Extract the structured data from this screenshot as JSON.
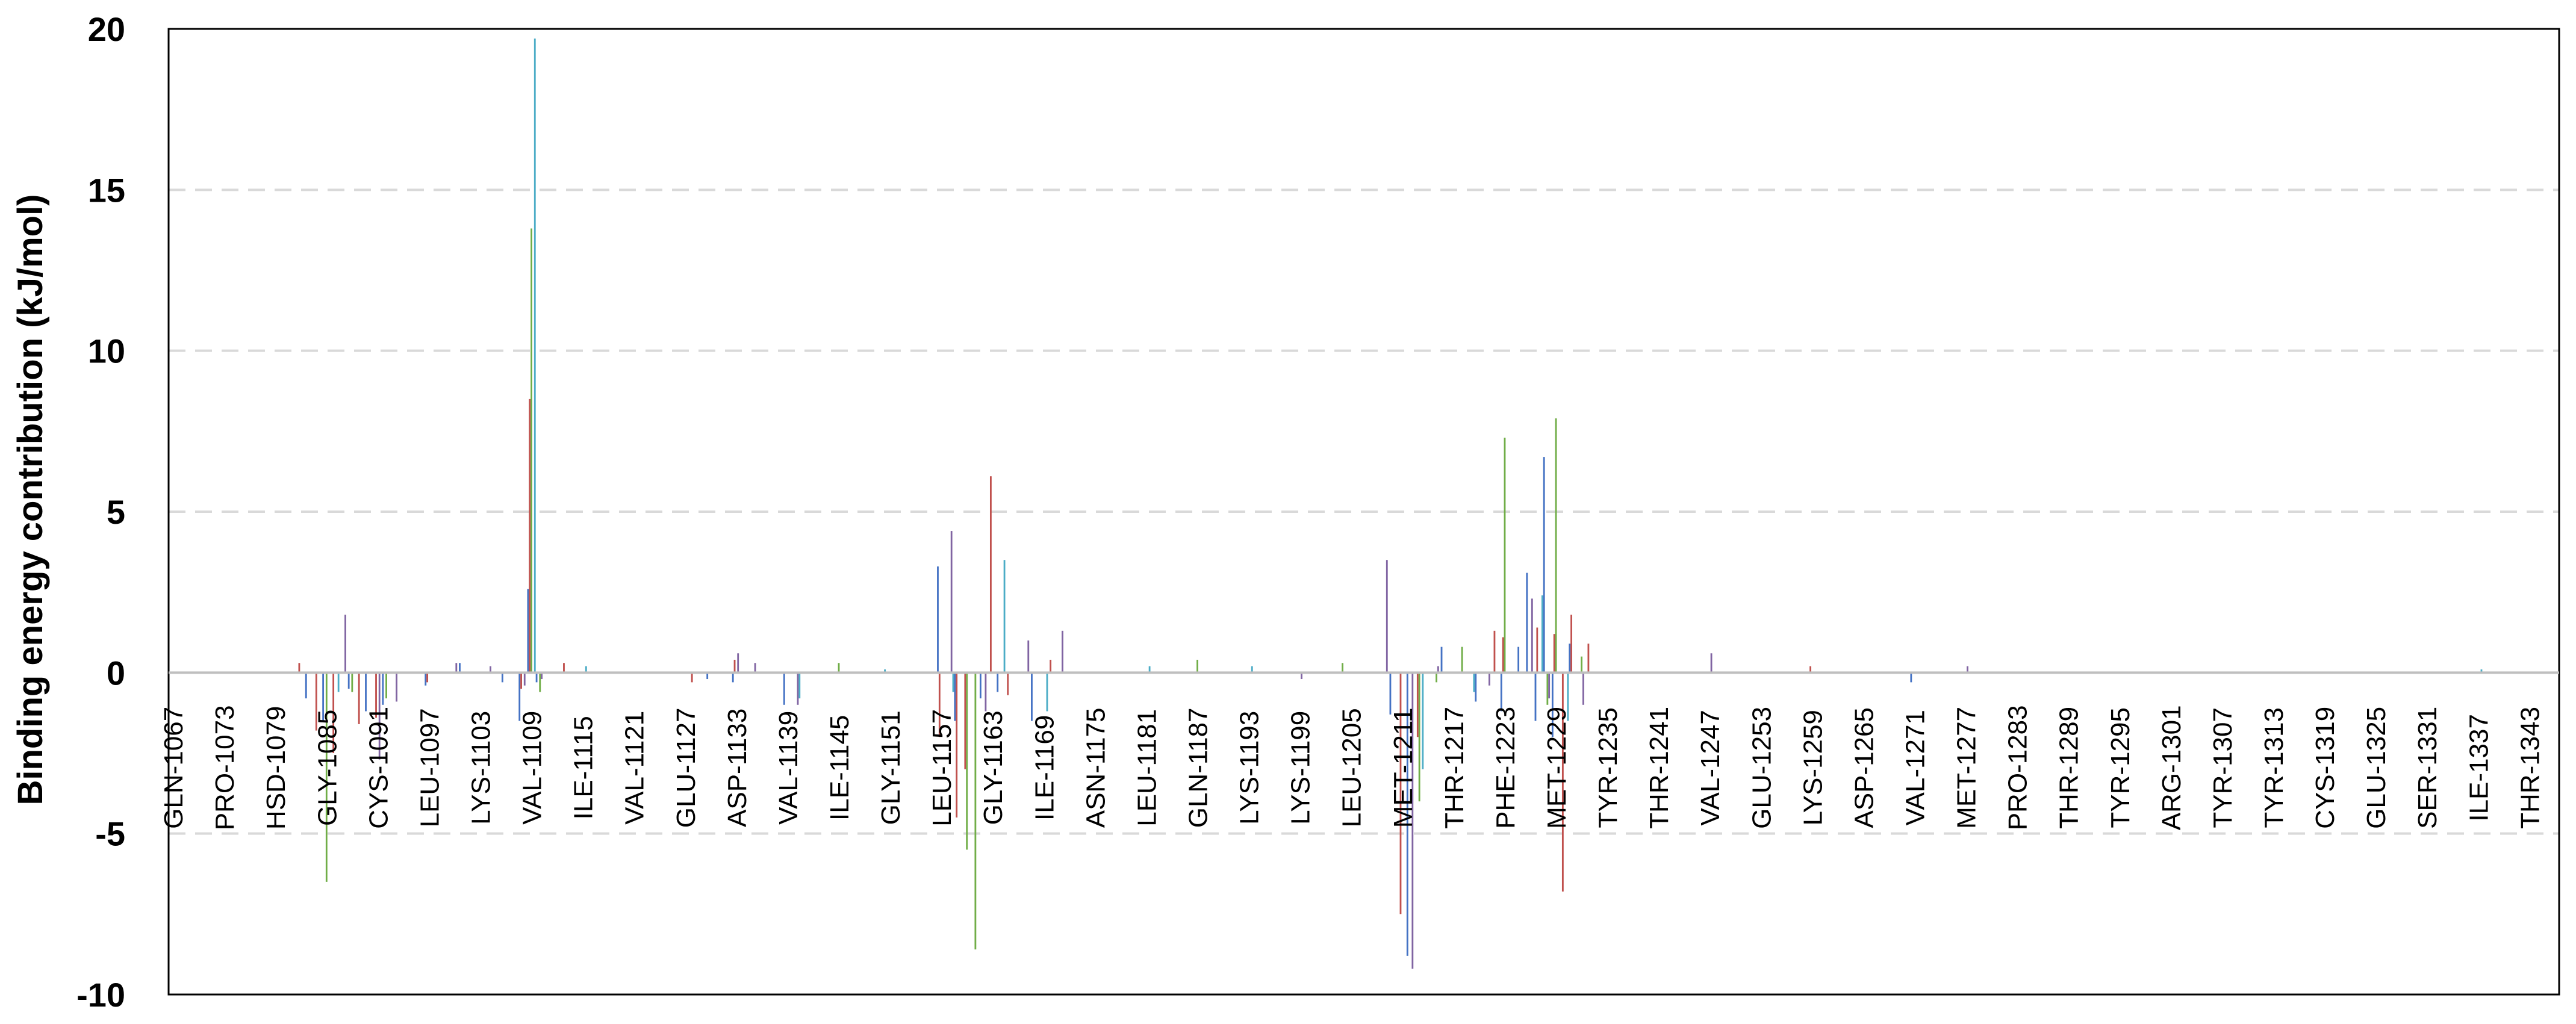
{
  "chart_data": {
    "type": "bar",
    "title": "",
    "xlabel": "",
    "ylabel": "Binding energy contribution (kJ/mol)",
    "ylim": [
      -10,
      20
    ],
    "yticks": [
      -10,
      -5,
      0,
      5,
      10,
      15,
      20
    ],
    "ytick_labels": [
      "-10",
      "-5",
      "0",
      "5",
      "10",
      "15",
      "20"
    ],
    "grid": "horizontal dashed",
    "legend": "none",
    "x_start_residue": 1067,
    "x_end_residue": 1346,
    "categories": [
      "GLN-1067",
      "PRO-1073",
      "HSD-1079",
      "GLY-1085",
      "CYS-1091",
      "LEU-1097",
      "LYS-1103",
      "VAL-1109",
      "ILE-1115",
      "VAL-1121",
      "GLU-1127",
      "ASP-1133",
      "VAL-1139",
      "ILE-1145",
      "GLY-1151",
      "LEU-1157",
      "GLY-1163",
      "ILE-1169",
      "ASN-1175",
      "LEU-1181",
      "GLN-1187",
      "LYS-1193",
      "LYS-1199",
      "LEU-1205",
      "MET-1211",
      "THR-1217",
      "PHE-1223",
      "MET-1229",
      "TYR-1235",
      "THR-1241",
      "VAL-1247",
      "GLU-1253",
      "LYS-1259",
      "ASP-1265",
      "VAL-1271",
      "MET-1277",
      "PRO-1283",
      "THR-1289",
      "TYR-1295",
      "ARG-1301",
      "TYR-1307",
      "TYR-1313",
      "CYS-1319",
      "GLU-1325",
      "SER-1331",
      "ILE-1337",
      "THR-1343"
    ],
    "series_colors": [
      "#4472C4",
      "#C0504D",
      "#70AD47",
      "#8064A2",
      "#4BACC6"
    ],
    "series": [
      {
        "values": [
          {
            "x": 1083,
            "y": -0.8
          },
          {
            "x": 1085,
            "y": -1.5
          },
          {
            "x": 1088,
            "y": -0.5
          },
          {
            "x": 1090,
            "y": -1.2
          },
          {
            "x": 1092,
            "y": -1.0
          },
          {
            "x": 1097,
            "y": -0.4
          },
          {
            "x": 1101,
            "y": 0.3
          },
          {
            "x": 1106,
            "y": -0.3
          },
          {
            "x": 1108,
            "y": -1.5
          },
          {
            "x": 1109,
            "y": 2.6
          },
          {
            "x": 1110,
            "y": -0.3
          },
          {
            "x": 1130,
            "y": -0.2
          },
          {
            "x": 1133,
            "y": -0.3
          },
          {
            "x": 1139,
            "y": -1.0
          },
          {
            "x": 1157,
            "y": 3.3
          },
          {
            "x": 1159,
            "y": -1.5
          },
          {
            "x": 1162,
            "y": -0.8
          },
          {
            "x": 1164,
            "y": -0.6
          },
          {
            "x": 1168,
            "y": -1.5
          },
          {
            "x": 1210,
            "y": -1.3
          },
          {
            "x": 1212,
            "y": -8.8
          },
          {
            "x": 1216,
            "y": 0.8
          },
          {
            "x": 1220,
            "y": -0.9
          },
          {
            "x": 1223,
            "y": -1.2
          },
          {
            "x": 1225,
            "y": 0.8
          },
          {
            "x": 1226,
            "y": 3.1
          },
          {
            "x": 1227,
            "y": -1.5
          },
          {
            "x": 1228,
            "y": 6.7
          },
          {
            "x": 1229,
            "y": -2.0
          },
          {
            "x": 1231,
            "y": 0.9
          },
          {
            "x": 1271,
            "y": -0.3
          }
        ]
      },
      {
        "values": [
          {
            "x": 1082,
            "y": 0.3
          },
          {
            "x": 1084,
            "y": -1.8
          },
          {
            "x": 1086,
            "y": -2.5
          },
          {
            "x": 1089,
            "y": -1.6
          },
          {
            "x": 1091,
            "y": -1.4
          },
          {
            "x": 1097,
            "y": -0.3
          },
          {
            "x": 1108,
            "y": -0.5
          },
          {
            "x": 1109,
            "y": 8.5
          },
          {
            "x": 1113,
            "y": 0.3
          },
          {
            "x": 1128,
            "y": -0.3
          },
          {
            "x": 1133,
            "y": 0.4
          },
          {
            "x": 1157,
            "y": -2.0
          },
          {
            "x": 1159,
            "y": -4.5
          },
          {
            "x": 1160,
            "y": -3.0
          },
          {
            "x": 1163,
            "y": 6.1
          },
          {
            "x": 1165,
            "y": -0.7
          },
          {
            "x": 1170,
            "y": 0.4
          },
          {
            "x": 1211,
            "y": -7.5
          },
          {
            "x": 1213,
            "y": -2.0
          },
          {
            "x": 1222,
            "y": 1.3
          },
          {
            "x": 1223,
            "y": 1.1
          },
          {
            "x": 1227,
            "y": 1.4
          },
          {
            "x": 1229,
            "y": 1.2
          },
          {
            "x": 1230,
            "y": -6.8
          },
          {
            "x": 1231,
            "y": 1.8
          },
          {
            "x": 1233,
            "y": 0.9
          },
          {
            "x": 1259,
            "y": 0.2
          }
        ]
      },
      {
        "values": [
          {
            "x": 1085,
            "y": -6.5
          },
          {
            "x": 1088,
            "y": -0.6
          },
          {
            "x": 1092,
            "y": -0.8
          },
          {
            "x": 1109,
            "y": 13.8
          },
          {
            "x": 1110,
            "y": -0.6
          },
          {
            "x": 1145,
            "y": 0.3
          },
          {
            "x": 1160,
            "y": -5.5
          },
          {
            "x": 1161,
            "y": -8.6
          },
          {
            "x": 1187,
            "y": 0.4
          },
          {
            "x": 1204,
            "y": 0.3
          },
          {
            "x": 1213,
            "y": -4.0
          },
          {
            "x": 1215,
            "y": -0.3
          },
          {
            "x": 1218,
            "y": 0.8
          },
          {
            "x": 1223,
            "y": 7.3
          },
          {
            "x": 1228,
            "y": -1.0
          },
          {
            "x": 1229,
            "y": 7.9
          },
          {
            "x": 1232,
            "y": 0.5
          }
        ]
      },
      {
        "values": [
          {
            "x": 1087,
            "y": 1.8
          },
          {
            "x": 1091,
            "y": -2.7
          },
          {
            "x": 1093,
            "y": -0.9
          },
          {
            "x": 1100,
            "y": 0.3
          },
          {
            "x": 1104,
            "y": 0.2
          },
          {
            "x": 1108,
            "y": -0.4
          },
          {
            "x": 1110,
            "y": -0.2
          },
          {
            "x": 1133,
            "y": 0.6
          },
          {
            "x": 1135,
            "y": 0.3
          },
          {
            "x": 1140,
            "y": -1.0
          },
          {
            "x": 1158,
            "y": 4.4
          },
          {
            "x": 1162,
            "y": -1.2
          },
          {
            "x": 1167,
            "y": 1.0
          },
          {
            "x": 1171,
            "y": 1.3
          },
          {
            "x": 1199,
            "y": -0.2
          },
          {
            "x": 1209,
            "y": 3.5
          },
          {
            "x": 1212,
            "y": -9.2
          },
          {
            "x": 1215,
            "y": 0.2
          },
          {
            "x": 1221,
            "y": -0.4
          },
          {
            "x": 1226,
            "y": 2.3
          },
          {
            "x": 1228,
            "y": -0.8
          },
          {
            "x": 1232,
            "y": -1.0
          },
          {
            "x": 1247,
            "y": 0.6
          },
          {
            "x": 1277,
            "y": 0.2
          }
        ]
      },
      {
        "values": [
          {
            "x": 1086,
            "y": -0.6
          },
          {
            "x": 1109,
            "y": 19.7
          },
          {
            "x": 1115,
            "y": 0.2
          },
          {
            "x": 1140,
            "y": -0.8
          },
          {
            "x": 1150,
            "y": 0.1
          },
          {
            "x": 1158,
            "y": -0.6
          },
          {
            "x": 1164,
            "y": 3.5
          },
          {
            "x": 1169,
            "y": -1.2
          },
          {
            "x": 1181,
            "y": 0.2
          },
          {
            "x": 1193,
            "y": 0.2
          },
          {
            "x": 1213,
            "y": -3.0
          },
          {
            "x": 1219,
            "y": -0.6
          },
          {
            "x": 1227,
            "y": 2.4
          },
          {
            "x": 1230,
            "y": -1.5
          },
          {
            "x": 1337,
            "y": 0.1
          }
        ]
      }
    ]
  }
}
